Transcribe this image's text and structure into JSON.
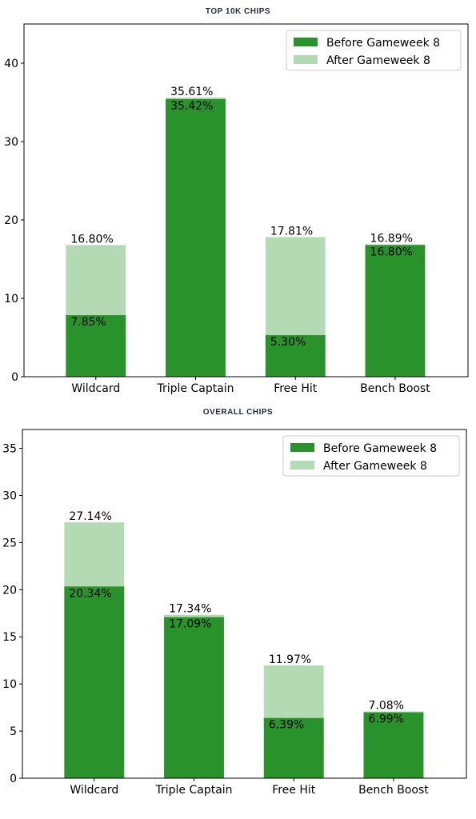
{
  "chart_data": [
    {
      "type": "bar",
      "stacked_overlay": true,
      "title": "TOP 10K CHIPS",
      "categories": [
        "Wildcard",
        "Triple Captain",
        "Free Hit",
        "Bench Boost"
      ],
      "series": [
        {
          "name": "Before Gameweek 8",
          "values": [
            7.85,
            35.42,
            5.3,
            16.8
          ],
          "labels": [
            "7.85%",
            "35.42%",
            "5.30%",
            "16.80%"
          ],
          "color": "#2a922a"
        },
        {
          "name": "After Gameweek 8",
          "values": [
            16.8,
            35.61,
            17.81,
            16.89
          ],
          "labels": [
            "16.80%",
            "35.61%",
            "17.81%",
            "16.89%"
          ],
          "color": "#b4dab4"
        }
      ],
      "ylim": [
        0,
        45
      ],
      "yticks": [
        0,
        10,
        20,
        30,
        40
      ],
      "grid": false,
      "legend": "top-right"
    },
    {
      "type": "bar",
      "stacked_overlay": true,
      "title": "OVERALL CHIPS",
      "categories": [
        "Wildcard",
        "Triple Captain",
        "Free Hit",
        "Bench Boost"
      ],
      "series": [
        {
          "name": "Before Gameweek 8",
          "values": [
            20.34,
            17.09,
            6.39,
            6.99
          ],
          "labels": [
            "20.34%",
            "17.09%",
            "6.39%",
            "6.99%"
          ],
          "color": "#2a922a"
        },
        {
          "name": "After Gameweek 8",
          "values": [
            27.14,
            17.34,
            11.97,
            7.08
          ],
          "labels": [
            "27.14%",
            "17.34%",
            "11.97%",
            "7.08%"
          ],
          "color": "#b4dab4"
        }
      ],
      "ylim": [
        0,
        37
      ],
      "yticks": [
        0,
        5,
        10,
        15,
        20,
        25,
        30,
        35
      ],
      "grid": false,
      "legend": "top-right"
    }
  ]
}
